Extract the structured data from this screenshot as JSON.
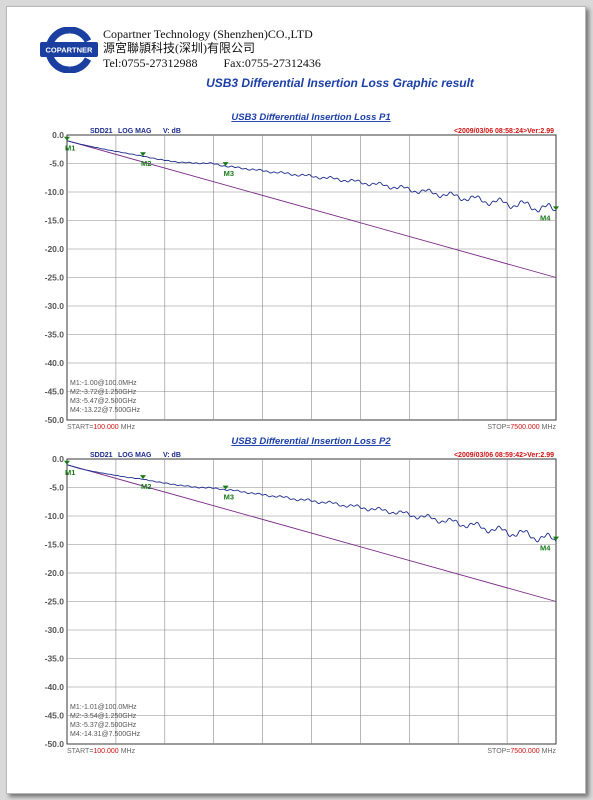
{
  "header": {
    "company_en": "Copartner Technology (Shenzhen)CO.,LTD",
    "company_cn": "源宮聯頴科技(深圳)有限公司",
    "tel": "Tel:0755-27312988",
    "fax": "Fax:0755-27312436",
    "logo_text": "COPARTNER",
    "report_title": "USB3 Differential Insertion Loss Graphic result"
  },
  "colors": {
    "plot_border": "#3a3a3a",
    "grid": "#8a8a8a",
    "trace": "#1b2a8c",
    "limit": "#7a2a86",
    "marker": "#1a7a1a",
    "header_red": "#d01010",
    "title_blue": "#1c3fa8",
    "text_blue": "#1b2a8c"
  },
  "chart_data": [
    {
      "type": "line",
      "title": "USB3 Differential Insertion Loss P1",
      "measurement": "SDD21",
      "format": "LOG MAG",
      "yunit": "V: dB",
      "timestamp": "<2009/03/06 08:58:24>Ver:2.99",
      "start_label": "START=",
      "start_value": "100.000",
      "start_unit": "MHz",
      "stop_label": "STOP=",
      "stop_value": "7500.000",
      "stop_unit": "MHz",
      "xlim": [
        100,
        7500
      ],
      "ylim": [
        -50,
        0
      ],
      "yticks": [
        "0.0",
        "-5.0",
        "-10.0",
        "-15.0",
        "-20.0",
        "-25.0",
        "-30.0",
        "-35.0",
        "-40.0",
        "-45.0",
        "-50.0"
      ],
      "grid": true,
      "series": [
        {
          "name": "SDD21",
          "x": [
            100,
            300,
            500,
            800,
            1000,
            1250,
            1500,
            1800,
            2000,
            2300,
            2500,
            2800,
            3000,
            3300,
            3600,
            4000,
            4300,
            4600,
            5000,
            5300,
            5600,
            6000,
            6300,
            6600,
            7000,
            7300,
            7500
          ],
          "y": [
            -1.0,
            -1.6,
            -2.1,
            -2.8,
            -3.2,
            -3.72,
            -4.3,
            -4.8,
            -4.9,
            -5.0,
            -5.47,
            -5.9,
            -6.2,
            -6.6,
            -7.0,
            -7.5,
            -7.9,
            -8.4,
            -9.0,
            -9.6,
            -10.1,
            -10.8,
            -11.3,
            -11.8,
            -12.3,
            -12.8,
            -13.22
          ]
        },
        {
          "name": "Limit",
          "x": [
            100,
            7500
          ],
          "y": [
            -1.0,
            -25.0
          ]
        }
      ],
      "markers": [
        {
          "label": "M1",
          "x": 100,
          "y": -1.0,
          "readout": "M1:-1.00@100.0MHz"
        },
        {
          "label": "M2",
          "x": 1250,
          "y": -3.72,
          "readout": "M2:-3.72@1.250GHz"
        },
        {
          "label": "M3",
          "x": 2500,
          "y": -5.47,
          "readout": "M3:-5.47@2.500GHz"
        },
        {
          "label": "M4",
          "x": 7500,
          "y": -13.22,
          "readout": "M4:-13.22@7.500GHz"
        }
      ]
    },
    {
      "type": "line",
      "title": "USB3 Differential Insertion Loss P2",
      "measurement": "SDD21",
      "format": "LOG MAG",
      "yunit": "V: dB",
      "timestamp": "<2009/03/06 08:59:42>Ver:2.99",
      "start_label": "START=",
      "start_value": "100.000",
      "start_unit": "MHz",
      "stop_label": "STOP=",
      "stop_value": "7500.000",
      "stop_unit": "MHz",
      "xlim": [
        100,
        7500
      ],
      "ylim": [
        -50,
        0
      ],
      "yticks": [
        "0.0",
        "-5.0",
        "-10.0",
        "-15.0",
        "-20.0",
        "-25.0",
        "-30.0",
        "-35.0",
        "-40.0",
        "-45.0",
        "-50.0"
      ],
      "grid": true,
      "series": [
        {
          "name": "SDD21",
          "x": [
            100,
            300,
            500,
            800,
            1000,
            1250,
            1500,
            1800,
            2000,
            2300,
            2500,
            2800,
            3000,
            3300,
            3600,
            4000,
            4300,
            4600,
            5000,
            5300,
            5600,
            6000,
            6300,
            6600,
            7000,
            7300,
            7500
          ],
          "y": [
            -1.01,
            -1.7,
            -2.2,
            -2.8,
            -3.2,
            -3.54,
            -4.1,
            -4.6,
            -4.9,
            -5.1,
            -5.37,
            -5.8,
            -6.2,
            -6.6,
            -7.1,
            -7.6,
            -8.1,
            -8.6,
            -9.2,
            -9.8,
            -10.4,
            -11.2,
            -11.8,
            -12.5,
            -13.2,
            -13.8,
            -14.31
          ]
        },
        {
          "name": "Limit",
          "x": [
            100,
            7500
          ],
          "y": [
            -1.0,
            -25.0
          ]
        }
      ],
      "markers": [
        {
          "label": "M1",
          "x": 100,
          "y": -1.01,
          "readout": "M1:-1.01@100.0MHz"
        },
        {
          "label": "M2",
          "x": 1250,
          "y": -3.54,
          "readout": "M2:-3.54@1.250GHz"
        },
        {
          "label": "M3",
          "x": 2500,
          "y": -5.37,
          "readout": "M3:-5.37@2.500GHz"
        },
        {
          "label": "M4",
          "x": 7500,
          "y": -14.31,
          "readout": "M4:-14.31@7.500GHz"
        }
      ]
    }
  ]
}
